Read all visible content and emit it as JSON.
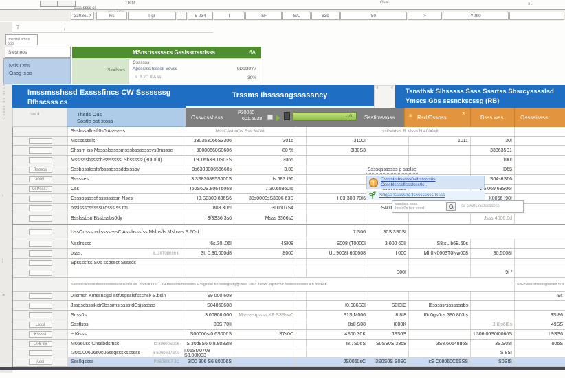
{
  "colors": {
    "blue_header": "#1e6fc3",
    "light_blue": "#aecbe8",
    "green_header": "#4e8e2f",
    "light_green": "#d7e7ce",
    "gray_header": "#7f7f7f",
    "orange_header": "#e2953e",
    "progress_bar": "#8fbf45",
    "selected_row": "#c9daf2"
  },
  "top": {
    "trim": "TRIM",
    "gas": "GsM",
    "dots": "s ,",
    "formula_hint": "'(I/(ALE)]=",
    "dashes": "ssss ssss ss"
  },
  "quickcells": [
    "3303c..?",
    "Ivs",
    "I-gr",
    "-",
    "5 034",
    "I",
    "IsF",
    "S/L",
    "839",
    "50",
    ">",
    "Y0II0",
    ""
  ],
  "leftstrip": {
    "vtext": "Cssss 3s 0s33",
    "glyphs": [
      "›",
      "¦",
      "≡",
      "·"
    ]
  },
  "panel": {
    "sort1": "7",
    "sort2": "/",
    "namebox": "ImsBtsDcbcs 606",
    "box2": "Stesnoos",
    "bluecell_l1": "Nsis Csm",
    "bluecell_l2": "Cisog is ss",
    "green_title": "MSnsrtssssscs Gsslssrrssdsss",
    "green_right": "6A",
    "lightgreen_value": "Sindsws",
    "white_l1": "Cssssss",
    "white_l2": "Apsss/ss tssssl: Ssvss",
    "white_l3": "s. 3 I/O I0A ss",
    "white_v1": "9DssI0Y7",
    "white_v2": "30%"
  },
  "sections": {
    "left_l1": "Imssmsshssd Exsssfincs CW Sssssssg",
    "left_l2": "Bfhscsss cs",
    "middle": "Trssms Ihssssngsssssncy",
    "gap_tick": "4",
    "right_l1": "Tsnsthsk Slhsssss Ssss Sssrtss Sbsrcysssslsd",
    "right_l2": "Ymscs Gbs sssnckscssg (RB)"
  },
  "colheaders": {
    "rowd": "rsw d",
    "name_l1": "Thsds Ous",
    "name_l2": "Sostlp ost stoss",
    "overview": "Ossvcsshsss",
    "p2020_l1": "P30060",
    "p2020_l2": "601.5038",
    "bar_label": "-101",
    "estimates": "Ssstimssoss",
    "rwe": "RsdÆssoss",
    "rwe_sup": "3",
    "issues": "Bsss wss",
    "overview2": "Ossssissss"
  },
  "popup": {
    "title": "Ssssqsssssss g ssslse",
    "item1_icon": "!",
    "item1_l1": "Cssssbsbsssss0slbsssss0s",
    "item1_l2": "Csssblssssflssslsss0s .",
    "item2": "S0qss0sssssbA3sssssssss0ssss",
    "search_l1": "ssssbss ssss",
    "search_l2": "Issss0s bss ssssl",
    "search_right": "ss c0s0s ss0ssssbss"
  },
  "table": {
    "rows": [
      {
        "type": "group",
        "l": "Sssbssallosfi0s0 Assssss",
        "gl": "MssCAsbbOK Sss 3s0I8",
        "gr": ":sslfsddsls R Msss N.4000ML",
        "ht": 14
      },
      {
        "l": "Msssssssls",
        "v2": "330353066S3306",
        "v3": "3016",
        "v5": "3100!",
        "v7": "1011",
        "v8": "30I"
      },
      {
        "l": "Shssm iss Msssslsssssmsssbsssssssvs0msssc",
        "v2": "90000668S0606",
        "v3": "80 %",
        "v5": "3I30S3",
        "v8": "330635S1"
      },
      {
        "l": "Msslsssbsssch-sssssssi Sbsssssl  (30I0/0I)",
        "v2": "I 900s63300S03S",
        "v3": "3065",
        "v8": "100!"
      },
      {
        "rh": "Rsosos",
        "l": "Sssbbsslissfs/bsssdsssddsissbv",
        "v2": "3s630300656660s",
        "v3": "3.00",
        "v8": "D6$"
      },
      {
        "rh": "3005.",
        "l": "Ssssses",
        "v2": "3 3S830885S600S",
        "v3": "Is 683 I96",
        "v6": "56Y6",
        "v8": "S04s6S66"
      },
      {
        "rh": "0sPsss7",
        "l": "Css",
        "v2": "I60S60S.806T6068",
        "v3": "7.30.60360I6",
        "v6": "s0sYs0608",
        "v8": "1.6I069 68S06!"
      },
      {
        "l": "Csssbsssssfissssssssn Nscsi",
        "v2": "I0.S0300I836S6",
        "v3": "30s0000sS3006 63S",
        "v5": "I 03-300 70I6",
        "v8": "X0066 I90!"
      },
      {
        "l": "bsslssscsssss0idsss.ss.rm",
        "v2": "808 306!",
        "v3": "3I.0607S4",
        "v6": "S40I0S6.88",
        "v7": "S99.700.03S",
        "v8": "I9S06.30I8"
      },
      {
        "l": "Bsslssbsn Bssbssbs0dy",
        "v2": "3/3S36 3s6",
        "v3": "Msss 3366s0",
        "v8": "Jsss 4006:0d",
        "ht": 16,
        "gray": [
          "v8"
        ]
      },
      {
        "type": "section",
        "l": "UssOdsssb-dissssi-ssC Asslbsssfss      Mslbsfls Msbsss S.60sI",
        "v5": "7.S06",
        "v6": "30S.3S0SI",
        "ht": 22
      },
      {
        "l": "Nsslrsssc",
        "v2": "I6s.30I.06I",
        "v3": "4SI08",
        "v5": "S008 (T0000I",
        "v6": "3 000 60II",
        "v7": "S8:sL.b6B.60s"
      },
      {
        "l": "bsss.",
        "ls": "IL.3IIT0II0II6 II",
        "v2": "3I. 0.30.000d8",
        "v3": "8000",
        "v5": "UL 9008I 600608",
        "v6": "I 000",
        "v7": "MI 0N0003T0Nw008",
        "v8": "30.5008I"
      },
      {
        "l": "Spssssfss.S0s ssbssct Sssscs"
      },
      {
        "l": "",
        "v6": "S00I",
        "v8": "9I /"
      },
      {
        "type": "longtext",
        "l": "Ssssss0slssssslsssssssssss0ssOss0ss. 3S30I000IC",
        "mid": "J0Arssssldsdsssssss V3sgsslsI b3 ssssgsshyg0sssl X0I3 3s8RCsqsslc8lc ssssssssssss s.fl 3ss6sK",
        "v9": "T6sFlSsss sbssssgssoss S0s",
        "ht": 20
      },
      {
        "l": "0Tsmsn Kmssnsgsl ssfJsgsslsfsschsk  S.bsln",
        "v2": "99 000 608",
        "v9": "9I:"
      },
      {
        "l": "Jssqsdsssikidr0bssimslssssfdCsjssssss",
        "v2": "S04060608",
        "v5": "I0.086S0I",
        "v6": "S0I0IC",
        "v7": "I6sssssrsssssssbs"
      },
      {
        "l": "Sqss0s",
        "v2": "3 00808 000",
        "v3": "Msssssqssss KF S3Ssw0",
        "v5": "S1S M006",
        "v6": "I8I8I8",
        "v7": "I6n0gs0cs 380 803Is",
        "v9": "3SI86",
        "gray": [
          "v3"
        ]
      },
      {
        "rh": "Lsssl",
        "l": "Sssflsss",
        "v2": "30S 70II",
        "v5": "8s8 S08",
        "v6": "I000K",
        "v8": "3II0s6I0s",
        "v9": "49SS",
        "gray": [
          "v8"
        ]
      },
      {
        "rh": "Kssssl",
        "l": "~ Kisss,",
        "v2": "S00006s/0 6S006S",
        "v3": "S7s0C",
        "v5": "4S00 30K",
        "v6": "JSS0S",
        "v8": "I 306 00S0I0060S",
        "v9": "I 9SS6"
      },
      {
        "rh": "U06 66",
        "l": "M0660sc Cnssbdsmsc",
        "ls": "I0:30600S006",
        "v2": "S 30d8S6 0I8.8083I8",
        "v5": "I8.7S06S",
        "v6": "S0SS0S 38d8",
        "v7": "3S8.60648II6S",
        "v8": "3S.S08I",
        "v9": "I006S"
      },
      {
        "l": "I30s000606s0s06ssqssskssssss",
        "ls": "6-6060607S0s",
        "v2": "I.06SM0708 S8.00I003",
        "v8": "S 8SI",
        "ht": 12
      },
      {
        "type": "selected",
        "rh": "Assi",
        "l": "Sss0qssss",
        "ls": "P0S06007 3C",
        "v2": "3I00 306 S6 80006S",
        "v5": "JS0060sC",
        "v6": "3S0S0S S0S0",
        "v7": "sS C08060C6SSS",
        "v8": "S0SIS"
      }
    ]
  }
}
